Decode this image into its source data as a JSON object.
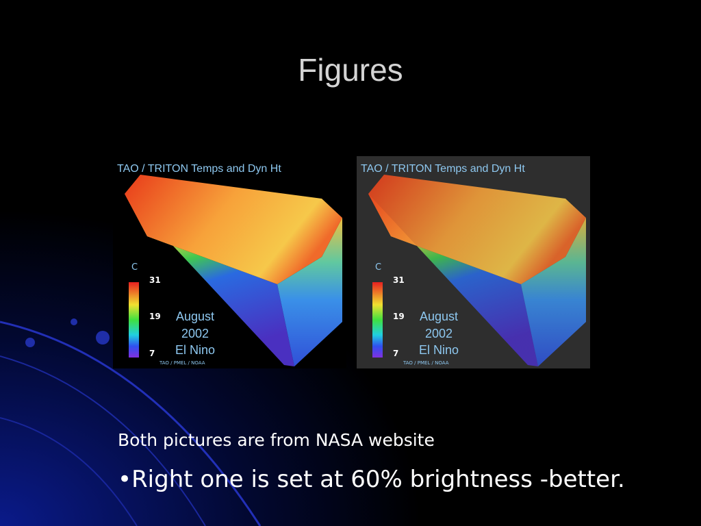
{
  "slide": {
    "title": "Figures",
    "figures": [
      {
        "title": "TAO / TRITON Temps and Dyn Ht",
        "unit": "C",
        "scale": [
          31,
          19,
          7
        ],
        "caption": [
          "August",
          "2002",
          "El Nino"
        ],
        "credit": "TAO / PMEL / NOAA"
      },
      {
        "title": "TAO / TRITON Temps and Dyn Ht",
        "unit": "C",
        "scale": [
          31,
          19,
          7
        ],
        "caption": [
          "August",
          "2002",
          "El Nino"
        ],
        "credit": "TAO / PMEL / NOAA"
      }
    ],
    "notes": [
      "Both pictures are from NASA website",
      "Right one is set at 60% brightness -better."
    ]
  }
}
